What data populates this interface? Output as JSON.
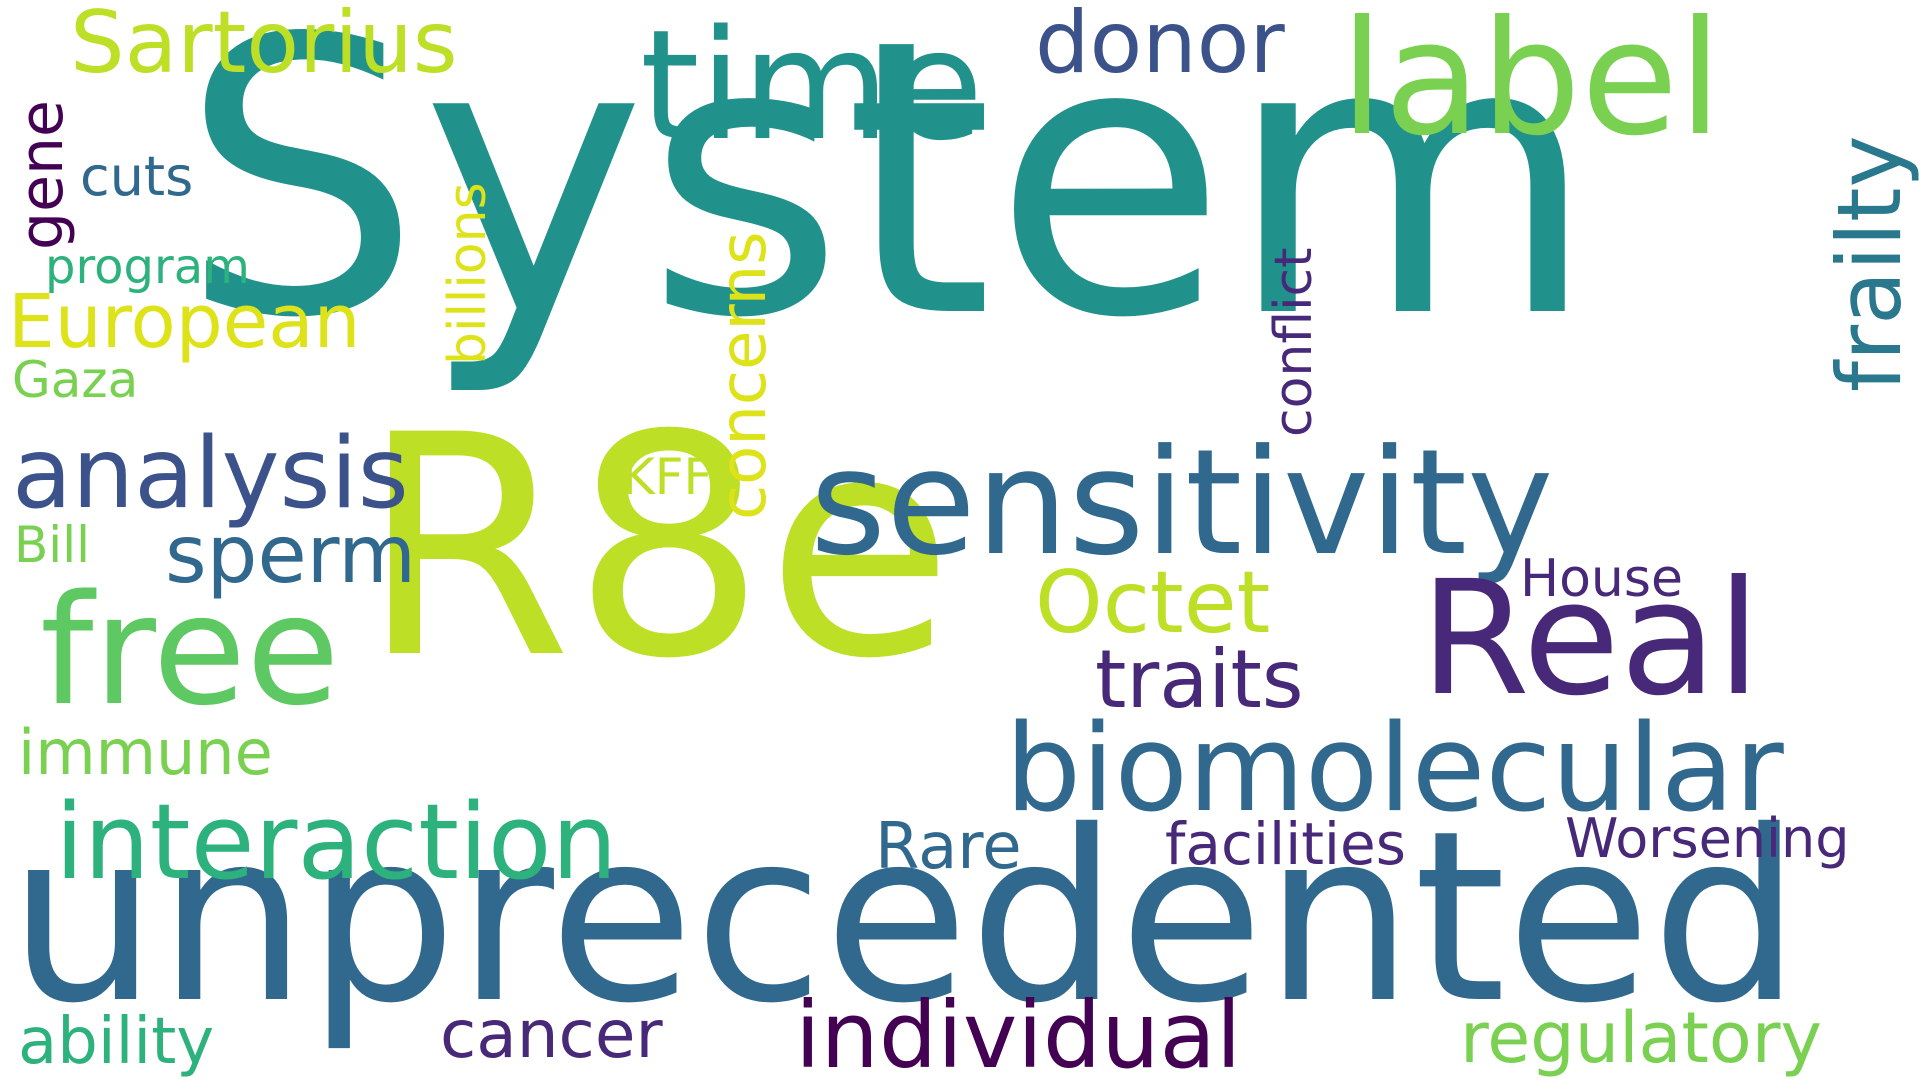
{
  "words": {
    "system": "System",
    "r8e": "R8e",
    "unprecedented": "unprecedented",
    "sensitivity": "sensitivity",
    "biomolecular": "biomolecular",
    "real": "Real",
    "free": "free",
    "label": "label",
    "time": "time",
    "interaction": "interaction",
    "analysis": "analysis",
    "individual": "individual",
    "sartorius": "Sartorius",
    "donor": "donor",
    "frailty": "frailty",
    "octet": "Octet",
    "traits": "traits",
    "sperm": "sperm",
    "european": "European",
    "concerns": "concerns",
    "conflict": "conflict",
    "billions": "billions",
    "gene": "gene",
    "cuts": "cuts",
    "program": "program",
    "gaza": "Gaza",
    "kff": "KFF",
    "bill": "Bill",
    "immune": "immune",
    "house": "House",
    "rare": "Rare",
    "facilities": "facilities",
    "worsening": "Worsening",
    "ability": "ability",
    "cancer": "cancer",
    "regulatory": "regulatory"
  },
  "colors": {
    "teal": "#21918c",
    "lime": "#bddf26",
    "steel_blue": "#31688e",
    "indigo": "#482878",
    "dark_purple": "#440154",
    "green": "#5ec962",
    "light_green": "#7ad151",
    "yellow": "#dde318",
    "sea_green": "#2db27d",
    "cyan_teal": "#1f9e89",
    "slate": "#3b528b",
    "blue_teal": "#2a788e"
  }
}
